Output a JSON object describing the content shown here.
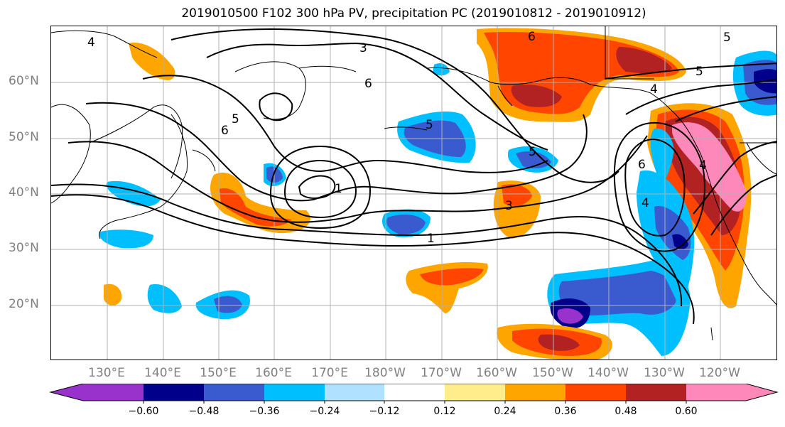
{
  "title": "2019010500 F102 300 hPa PV, precipitation PC (2019010812 - 2019010912)",
  "latitude_labels": [
    "60°N",
    "50°N",
    "40°N",
    "30°N",
    "20°N"
  ],
  "longitude_labels": [
    "130°E",
    "140°E",
    "150°E",
    "160°E",
    "170°E",
    "180°W",
    "170°W",
    "160°W",
    "150°W",
    "140°W",
    "130°W",
    "120°W"
  ],
  "contour_labels": [
    "4",
    "3",
    "6",
    "5",
    "6",
    "5",
    "1",
    "3",
    "1",
    "5",
    "6",
    "5",
    "4",
    "4",
    "5",
    "6",
    "4"
  ],
  "colorbar": {
    "ticks": [
      "−0.60",
      "−0.48",
      "−0.36",
      "−0.24",
      "−0.12",
      "0.12",
      "0.24",
      "0.36",
      "0.48",
      "0.60"
    ],
    "colors": [
      "#9932cc",
      "#00008b",
      "#3a5bd0",
      "#00bfff",
      "#b0e2ff",
      "#ffffff",
      "#ffec8b",
      "#ffa500",
      "#ff4500",
      "#b22222",
      "#ff88bb"
    ]
  },
  "colors": {
    "grid": "#b0b0b0",
    "contour": "#000000",
    "axis_label": "#808080"
  }
}
